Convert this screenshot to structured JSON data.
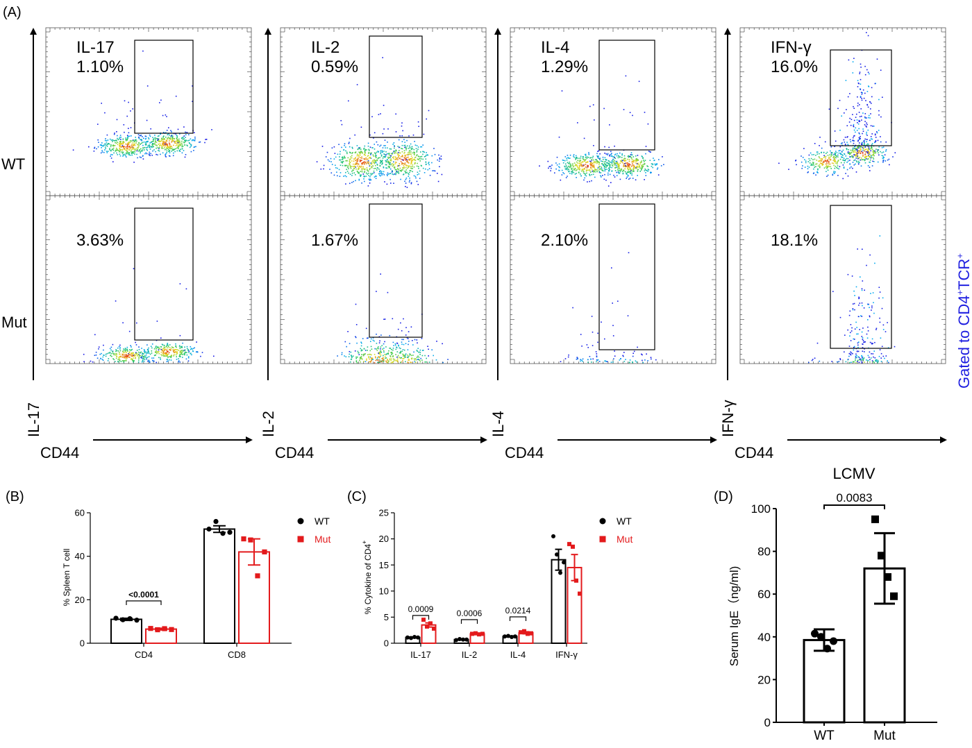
{
  "colors": {
    "wt": "#000000",
    "mut": "#e31a1c",
    "gated": "#1f1fe0"
  },
  "panel_a": {
    "label": "(A)",
    "x_label": "CD44",
    "row_labels": [
      "WT",
      "Mut"
    ],
    "gated_text": "Gated to CD4",
    "gated_sup": "+",
    "gated_text2": "TCR",
    "gated_sup2": "+",
    "columns": [
      {
        "y_label": "IL-17",
        "wt": {
          "name": "IL-17",
          "pct": "1.10%"
        },
        "mut": {
          "pct": "3.63%"
        }
      },
      {
        "y_label": "IL-2",
        "wt": {
          "name": "IL-2",
          "pct": "0.59%"
        },
        "mut": {
          "pct": "1.67%"
        }
      },
      {
        "y_label": "IL-4",
        "wt": {
          "name": "IL-4",
          "pct": "1.29%"
        },
        "mut": {
          "pct": "2.10%"
        }
      },
      {
        "y_label": "IFN-γ",
        "wt": {
          "name": "IFN-γ",
          "pct": "16.0%"
        },
        "mut": {
          "pct": "18.1%"
        }
      }
    ]
  },
  "chart_data": [
    {
      "panel": "(B)",
      "type": "bar",
      "categories": [
        "CD4",
        "CD8"
      ],
      "ylabel": "% Spleen T cell",
      "ylim": [
        0,
        60
      ],
      "yticks": [
        "0",
        "20",
        "40",
        "60"
      ],
      "series": [
        {
          "name": "WT",
          "values": [
            11,
            52.5
          ],
          "sem": [
            0.5,
            1.5
          ],
          "points": [
            [
              11.5,
              10.8,
              11.3,
              10.6
            ],
            [
              52.5,
              56,
              50.5,
              51
            ]
          ]
        },
        {
          "name": "Mut",
          "values": [
            6.5,
            42
          ],
          "sem": [
            0.4,
            6
          ],
          "points": [
            [
              6.8,
              6.2,
              6.7,
              6.3
            ],
            [
              48,
              47.5,
              31,
              42
            ]
          ]
        }
      ],
      "annotations": [
        {
          "text": "<0.0001",
          "category": "CD4"
        }
      ],
      "legend": "top-right"
    },
    {
      "panel": "(C)",
      "type": "bar",
      "categories": [
        "IL-17",
        "IL-2",
        "IL-4",
        "IFN-γ"
      ],
      "ylabel": "% Cytokine of CD4",
      "ylabel_sup": "+",
      "ylim": [
        0,
        25
      ],
      "yticks": [
        "0",
        "5",
        "10",
        "15",
        "20",
        "25"
      ],
      "series": [
        {
          "name": "WT",
          "values": [
            1.1,
            0.7,
            1.3,
            16
          ],
          "sem": [
            0.1,
            0.08,
            0.1,
            2
          ],
          "points": [
            [
              1.1,
              1.0,
              1.2,
              1.1
            ],
            [
              0.6,
              0.8,
              0.7,
              0.7
            ],
            [
              1.3,
              1.4,
              1.2,
              1.3
            ],
            [
              20.5,
              17,
              13.5,
              15.5
            ]
          ]
        },
        {
          "name": "Mut",
          "values": [
            3.5,
            1.8,
            2.0,
            14.5
          ],
          "sem": [
            0.4,
            0.1,
            0.2,
            2.5
          ],
          "points": [
            [
              4.5,
              3.2,
              3.8,
              2.8
            ],
            [
              1.8,
              1.9,
              1.7,
              1.8
            ],
            [
              2.1,
              2.3,
              1.8,
              1.9
            ],
            [
              19,
              18.5,
              12,
              9.5
            ]
          ]
        }
      ],
      "annotations": [
        {
          "text": "0.0009",
          "category": "IL-17"
        },
        {
          "text": "0.0006",
          "category": "IL-2"
        },
        {
          "text": "0.0214",
          "category": "IL-4"
        }
      ],
      "legend": "top-right"
    },
    {
      "panel": "(D)",
      "type": "bar",
      "title": "LCMV",
      "categories": [
        "WT",
        "Mut"
      ],
      "ylabel": "Serum IgE（ng/ml)",
      "ylim": [
        0,
        100
      ],
      "yticks": [
        "0",
        "20",
        "40",
        "60",
        "80",
        "100"
      ],
      "values": [
        38.5,
        72
      ],
      "sd": [
        5,
        16.5
      ],
      "points": [
        [
          41.5,
          40,
          34.5,
          38
        ],
        [
          95,
          78,
          68,
          59
        ]
      ],
      "annotations": [
        {
          "text": "0.0083"
        }
      ]
    }
  ]
}
